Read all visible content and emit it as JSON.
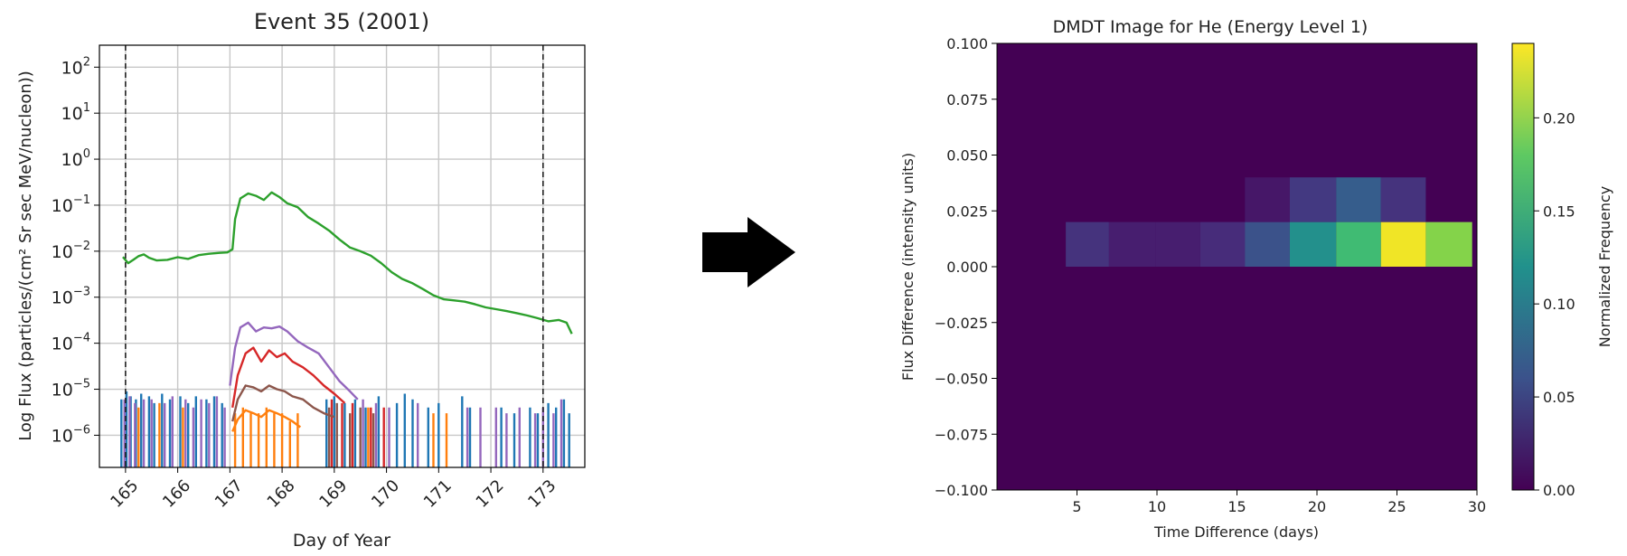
{
  "chart_data": [
    {
      "type": "line",
      "title": "Event 35 (2001)",
      "xlabel": "Day of Year",
      "ylabel": "Log Flux (particles/(cm² Sr sec MeV/nucleon))",
      "yscale": "log",
      "xlim": [
        164.5,
        173.8
      ],
      "ylim": [
        2e-07,
        300
      ],
      "x_ticks": [
        165,
        166,
        167,
        168,
        169,
        170,
        171,
        172,
        173
      ],
      "x_tick_labels": [
        "165",
        "166",
        "167",
        "168",
        "169",
        "170",
        "171",
        "172",
        "173"
      ],
      "y_tick_bases": [
        "10",
        "10",
        "10",
        "10",
        "10",
        "10",
        "10",
        "10",
        "10"
      ],
      "y_tick_exponents": [
        "−6",
        "−5",
        "−4",
        "−3",
        "−2",
        "−1",
        "0",
        "1",
        "2"
      ],
      "grid": true,
      "vlines_dashed": [
        165.0,
        173.0
      ],
      "series": [
        {
          "color": "#2ca02c",
          "points": [
            [
              164.95,
              0.0075
            ],
            [
              165.05,
              0.0055
            ],
            [
              165.15,
              0.0065
            ],
            [
              165.25,
              0.0078
            ],
            [
              165.35,
              0.0085
            ],
            [
              165.45,
              0.0072
            ],
            [
              165.6,
              0.0063
            ],
            [
              165.8,
              0.0065
            ],
            [
              166.0,
              0.0074
            ],
            [
              166.2,
              0.0068
            ],
            [
              166.4,
              0.0082
            ],
            [
              166.6,
              0.0088
            ],
            [
              166.8,
              0.0092
            ],
            [
              166.95,
              0.0094
            ],
            [
              167.05,
              0.011
            ],
            [
              167.1,
              0.05
            ],
            [
              167.2,
              0.14
            ],
            [
              167.35,
              0.18
            ],
            [
              167.5,
              0.16
            ],
            [
              167.65,
              0.13
            ],
            [
              167.8,
              0.19
            ],
            [
              167.95,
              0.15
            ],
            [
              168.1,
              0.11
            ],
            [
              168.3,
              0.09
            ],
            [
              168.5,
              0.055
            ],
            [
              168.7,
              0.04
            ],
            [
              168.9,
              0.028
            ],
            [
              169.1,
              0.018
            ],
            [
              169.3,
              0.012
            ],
            [
              169.5,
              0.01
            ],
            [
              169.7,
              0.008
            ],
            [
              169.9,
              0.0055
            ],
            [
              170.1,
              0.0035
            ],
            [
              170.3,
              0.0025
            ],
            [
              170.5,
              0.002
            ],
            [
              170.7,
              0.0015
            ],
            [
              170.9,
              0.0011
            ],
            [
              171.1,
              0.0009
            ],
            [
              171.3,
              0.00085
            ],
            [
              171.5,
              0.0008
            ],
            [
              171.7,
              0.0007
            ],
            [
              171.9,
              0.0006
            ],
            [
              172.1,
              0.00055
            ],
            [
              172.3,
              0.0005
            ],
            [
              172.5,
              0.00045
            ],
            [
              172.7,
              0.0004
            ],
            [
              172.9,
              0.00035
            ],
            [
              173.1,
              0.0003
            ],
            [
              173.3,
              0.00032
            ],
            [
              173.45,
              0.00028
            ],
            [
              173.55,
              0.00016
            ]
          ]
        },
        {
          "color": "#9467bd",
          "points": [
            [
              167.0,
              1.2e-05
            ],
            [
              167.1,
              8e-05
            ],
            [
              167.2,
              0.00022
            ],
            [
              167.35,
              0.00028
            ],
            [
              167.5,
              0.00018
            ],
            [
              167.65,
              0.00022
            ],
            [
              167.8,
              0.00021
            ],
            [
              167.95,
              0.00023
            ],
            [
              168.1,
              0.00018
            ],
            [
              168.3,
              0.00011
            ],
            [
              168.5,
              8e-05
            ],
            [
              168.7,
              6e-05
            ],
            [
              168.9,
              3e-05
            ],
            [
              169.1,
              1.5e-05
            ],
            [
              169.3,
              9e-06
            ],
            [
              169.45,
              6e-06
            ]
          ]
        },
        {
          "color": "#d62728",
          "points": [
            [
              167.05,
              4e-06
            ],
            [
              167.15,
              2e-05
            ],
            [
              167.3,
              6e-05
            ],
            [
              167.45,
              8e-05
            ],
            [
              167.6,
              4e-05
            ],
            [
              167.75,
              7e-05
            ],
            [
              167.9,
              5e-05
            ],
            [
              168.05,
              6e-05
            ],
            [
              168.2,
              4e-05
            ],
            [
              168.4,
              3e-05
            ],
            [
              168.6,
              2e-05
            ],
            [
              168.8,
              1.2e-05
            ],
            [
              169.0,
              8e-06
            ],
            [
              169.2,
              5e-06
            ]
          ]
        },
        {
          "color": "#8c564b",
          "points": [
            [
              167.05,
              2e-06
            ],
            [
              167.15,
              6e-06
            ],
            [
              167.3,
              1.2e-05
            ],
            [
              167.45,
              1.1e-05
            ],
            [
              167.6,
              9e-06
            ],
            [
              167.75,
              1.2e-05
            ],
            [
              167.9,
              1e-05
            ],
            [
              168.05,
              9e-06
            ],
            [
              168.2,
              7e-06
            ],
            [
              168.4,
              6e-06
            ],
            [
              168.6,
              4e-06
            ],
            [
              168.8,
              3e-06
            ],
            [
              169.0,
              2.5e-06
            ]
          ]
        },
        {
          "color": "#ff7f0e",
          "points": [
            [
              167.05,
              1.2e-06
            ],
            [
              167.15,
              2.2e-06
            ],
            [
              167.3,
              3.5e-06
            ],
            [
              167.45,
              3e-06
            ],
            [
              167.6,
              2.5e-06
            ],
            [
              167.75,
              3.5e-06
            ],
            [
              167.9,
              3e-06
            ],
            [
              168.05,
              2.5e-06
            ],
            [
              168.2,
              2e-06
            ],
            [
              168.35,
              1.5e-06
            ]
          ]
        }
      ],
      "spike_series": [
        {
          "color": "#1f77b4",
          "x": [
            164.92,
            165.02,
            165.1,
            165.2,
            165.3,
            165.45,
            165.55,
            165.7,
            165.85,
            166.05,
            166.2,
            166.35,
            166.55,
            166.7,
            166.85,
            168.85,
            169.0,
            169.2,
            169.4,
            169.6,
            169.85,
            170.2,
            170.35,
            170.5,
            170.8,
            171.0,
            171.45,
            171.6,
            172.2,
            172.45,
            172.75,
            172.9,
            173.1,
            173.25,
            173.4,
            173.5
          ],
          "y": [
            6e-06,
            9e-06,
            7e-06,
            6e-06,
            8e-06,
            7e-06,
            5e-06,
            8e-06,
            6e-06,
            7e-06,
            5e-06,
            7e-06,
            6e-06,
            7e-06,
            5e-06,
            6e-06,
            7e-06,
            5e-06,
            6e-06,
            4e-06,
            7e-06,
            5e-06,
            8e-06,
            6e-06,
            4e-06,
            5e-06,
            7e-06,
            4e-06,
            4e-06,
            3e-06,
            4e-06,
            3e-06,
            5e-06,
            4e-06,
            6e-06,
            3e-06
          ]
        },
        {
          "color": "#ff7f0e",
          "x": [
            165.25,
            165.65,
            166.1,
            167.1,
            167.25,
            167.4,
            167.55,
            167.7,
            167.85,
            168.0,
            168.15,
            168.3,
            169.65,
            170.9,
            171.15
          ],
          "y": [
            4e-06,
            5e-06,
            4e-06,
            3e-06,
            4e-06,
            3e-06,
            3e-06,
            4e-06,
            3e-06,
            3e-06,
            2e-06,
            3e-06,
            4e-06,
            3e-06,
            3e-06
          ]
        },
        {
          "color": "#d62728",
          "x": [
            168.95,
            169.15,
            169.35,
            169.7,
            169.95
          ],
          "y": [
            6e-06,
            5e-06,
            5e-06,
            4e-06,
            4e-06
          ]
        },
        {
          "color": "#8c564b",
          "x": [
            168.9,
            169.05,
            169.3,
            169.5,
            169.75
          ],
          "y": [
            4e-06,
            5e-06,
            3e-06,
            4e-06,
            3e-06
          ]
        },
        {
          "color": "#9467bd",
          "x": [
            164.98,
            165.08,
            165.18,
            165.35,
            165.5,
            165.75,
            165.9,
            166.15,
            166.3,
            166.45,
            166.6,
            166.75,
            166.9,
            169.55,
            169.8,
            170.05,
            170.6,
            171.55,
            171.8,
            172.1,
            172.3,
            172.55,
            172.85,
            173.0,
            173.2,
            173.35
          ],
          "y": [
            6e-06,
            7e-06,
            5e-06,
            6e-06,
            6e-06,
            5e-06,
            7e-06,
            6e-06,
            4e-06,
            6e-06,
            5e-06,
            7e-06,
            4e-06,
            6e-06,
            5e-06,
            4e-06,
            5e-06,
            4e-06,
            4e-06,
            4e-06,
            3e-06,
            4e-06,
            3e-06,
            4e-06,
            3e-06,
            6e-06
          ]
        }
      ]
    },
    {
      "type": "heatmap",
      "title": "DMDT Image for He (Energy Level 1)",
      "xlabel": "Time Difference (days)",
      "ylabel": "Flux Difference (intensity units)",
      "xlim": [
        0,
        30
      ],
      "ylim": [
        -0.1,
        0.1
      ],
      "x_ticks": [
        5,
        10,
        15,
        20,
        25,
        30
      ],
      "x_tick_labels": [
        "5",
        "10",
        "15",
        "20",
        "25",
        "30"
      ],
      "y_ticks": [
        -0.1,
        -0.075,
        -0.05,
        -0.025,
        0.0,
        0.025,
        0.05,
        0.075,
        0.1
      ],
      "y_tick_labels": [
        "−0.100",
        "−0.075",
        "−0.050",
        "−0.025",
        "0.000",
        "0.025",
        "0.050",
        "0.075",
        "0.100"
      ],
      "colormap": "viridis",
      "colorbar_label": "Normalized Frequency",
      "colorbar_range": [
        0,
        0.24
      ],
      "colorbar_ticks": [
        0.0,
        0.05,
        0.1,
        0.15,
        0.2
      ],
      "colorbar_tick_labels": [
        "0.00",
        "0.05",
        "0.10",
        "0.15",
        "0.20"
      ],
      "cells": [
        {
          "x": [
            4.3,
            7.0
          ],
          "y": [
            0.0,
            0.02
          ],
          "value": 0.035
        },
        {
          "x": [
            7.0,
            9.9
          ],
          "y": [
            0.0,
            0.02
          ],
          "value": 0.02
        },
        {
          "x": [
            9.9,
            12.7
          ],
          "y": [
            0.0,
            0.02
          ],
          "value": 0.02
        },
        {
          "x": [
            12.7,
            15.5
          ],
          "y": [
            0.0,
            0.02
          ],
          "value": 0.03
        },
        {
          "x": [
            15.5,
            18.3
          ],
          "y": [
            0.0,
            0.02
          ],
          "value": 0.06
        },
        {
          "x": [
            15.5,
            18.3
          ],
          "y": [
            0.02,
            0.04
          ],
          "value": 0.015
        },
        {
          "x": [
            18.3,
            21.2
          ],
          "y": [
            0.0,
            0.02
          ],
          "value": 0.12
        },
        {
          "x": [
            18.3,
            21.2
          ],
          "y": [
            0.02,
            0.04
          ],
          "value": 0.04
        },
        {
          "x": [
            21.2,
            24.0
          ],
          "y": [
            0.0,
            0.02
          ],
          "value": 0.165
        },
        {
          "x": [
            21.2,
            24.0
          ],
          "y": [
            0.02,
            0.04
          ],
          "value": 0.07
        },
        {
          "x": [
            24.0,
            26.8
          ],
          "y": [
            0.0,
            0.02
          ],
          "value": 0.235
        },
        {
          "x": [
            24.0,
            26.8
          ],
          "y": [
            0.02,
            0.04
          ],
          "value": 0.035
        },
        {
          "x": [
            26.8,
            29.7
          ],
          "y": [
            0.0,
            0.02
          ],
          "value": 0.195
        }
      ]
    }
  ]
}
